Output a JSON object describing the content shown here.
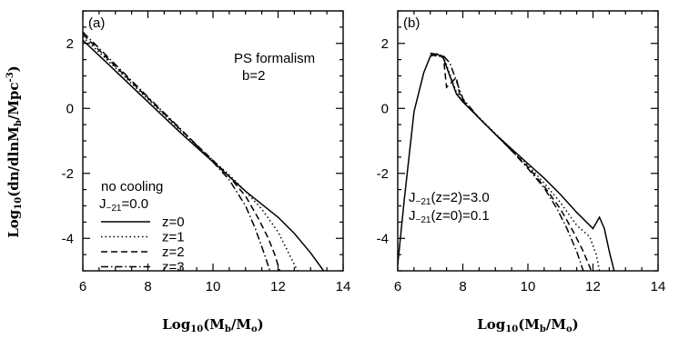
{
  "figure": {
    "ylabel": "Log10(dn/dlnMb/Mpc-3)"
  },
  "chart_data": [
    {
      "panel": "(a)",
      "type": "line",
      "xlabel": "Log10(Mb/Mo)",
      "xlim": [
        6,
        14
      ],
      "ylim": [
        -5,
        3
      ],
      "xticks": [
        6,
        8,
        10,
        12,
        14
      ],
      "yticks": [
        -4,
        -2,
        0,
        2
      ],
      "grid": false,
      "annotations": [
        "PS formalism",
        "b=2"
      ],
      "legend": {
        "placement": "bottom-left",
        "title": "no cooling",
        "subtitle": "J-21=0.0",
        "entries": [
          "z=0",
          "z=1",
          "z=2",
          "z=3"
        ]
      },
      "series": [
        {
          "name": "z=0",
          "dash": "solid",
          "x": [
            6.0,
            7.0,
            8.0,
            9.0,
            10.0,
            10.5,
            11.0,
            11.5,
            12.0,
            12.5,
            13.0,
            13.4
          ],
          "y": [
            2.1,
            1.15,
            0.2,
            -0.75,
            -1.65,
            -2.1,
            -2.55,
            -2.95,
            -3.35,
            -3.85,
            -4.45,
            -5.0
          ]
        },
        {
          "name": "z=1",
          "dash": "dotted",
          "x": [
            6.0,
            7.0,
            8.0,
            9.0,
            10.0,
            10.5,
            11.0,
            11.5,
            12.0,
            12.3,
            12.6
          ],
          "y": [
            2.2,
            1.25,
            0.28,
            -0.68,
            -1.6,
            -2.05,
            -2.55,
            -3.1,
            -3.8,
            -4.4,
            -5.0
          ]
        },
        {
          "name": "z=2",
          "dash": "dashed",
          "x": [
            6.0,
            7.0,
            8.0,
            9.0,
            10.0,
            10.5,
            11.0,
            11.4,
            11.7,
            11.9,
            12.05
          ],
          "y": [
            2.28,
            1.3,
            0.32,
            -0.65,
            -1.6,
            -2.1,
            -2.7,
            -3.4,
            -4.0,
            -4.5,
            -5.0
          ]
        },
        {
          "name": "z=3",
          "dash": "dashdot",
          "x": [
            6.0,
            7.0,
            8.0,
            9.0,
            10.0,
            10.5,
            11.0,
            11.3,
            11.55,
            11.75
          ],
          "y": [
            2.35,
            1.35,
            0.35,
            -0.63,
            -1.65,
            -2.2,
            -3.0,
            -3.7,
            -4.4,
            -5.0
          ]
        }
      ]
    },
    {
      "panel": "(b)",
      "type": "line",
      "xlabel": "Log10(Mb/Mo)",
      "xlim": [
        6,
        14
      ],
      "ylim": [
        -5,
        3
      ],
      "xticks": [
        6,
        8,
        10,
        12,
        14
      ],
      "yticks": [
        -4,
        -2,
        0,
        2
      ],
      "grid": false,
      "annotations": [
        "J-21(z=2)=3.0",
        "J-21(z=0)=0.1"
      ],
      "series": [
        {
          "name": "z=0",
          "dash": "solid",
          "x": [
            6.0,
            6.2,
            6.5,
            6.8,
            7.0,
            7.2,
            7.4,
            7.6,
            7.8,
            8.0,
            8.5,
            9.0,
            9.5,
            10.0,
            10.5,
            11.0,
            11.5,
            12.0,
            12.2,
            12.35,
            12.5,
            12.65
          ],
          "y": [
            -4.8,
            -2.8,
            -0.1,
            1.1,
            1.6,
            1.68,
            1.55,
            1.0,
            0.45,
            0.2,
            -0.3,
            -0.8,
            -1.25,
            -1.7,
            -2.15,
            -2.65,
            -3.2,
            -3.7,
            -3.35,
            -3.7,
            -4.4,
            -5.0
          ]
        },
        {
          "name": "z=1",
          "dash": "dotted",
          "x": [
            7.0,
            7.4,
            7.6,
            7.8,
            8.0,
            8.5,
            9.0,
            9.5,
            10.0,
            10.5,
            11.0,
            11.5,
            11.9,
            12.1,
            12.2
          ],
          "y": [
            1.62,
            1.6,
            1.05,
            0.5,
            0.22,
            -0.28,
            -0.78,
            -1.25,
            -1.75,
            -2.3,
            -2.9,
            -3.6,
            -3.95,
            -4.5,
            -5.0
          ]
        },
        {
          "name": "z=2",
          "dash": "dashed",
          "x": [
            7.0,
            7.4,
            7.5,
            7.8,
            7.9,
            8.0,
            8.5,
            9.0,
            9.5,
            10.0,
            10.5,
            11.0,
            11.4,
            11.7,
            11.95
          ],
          "y": [
            1.65,
            1.6,
            0.65,
            0.95,
            0.45,
            0.25,
            -0.3,
            -0.8,
            -1.3,
            -1.8,
            -2.4,
            -3.1,
            -3.8,
            -4.4,
            -5.0
          ]
        },
        {
          "name": "z=3",
          "dash": "dashdot",
          "x": [
            7.0,
            7.4,
            7.6,
            8.0,
            8.5,
            9.0,
            9.5,
            10.0,
            10.5,
            10.9,
            11.2,
            11.5,
            11.7
          ],
          "y": [
            1.7,
            1.62,
            1.4,
            0.3,
            -0.3,
            -0.8,
            -1.3,
            -1.85,
            -2.45,
            -3.1,
            -3.7,
            -4.4,
            -5.0
          ]
        }
      ]
    }
  ]
}
